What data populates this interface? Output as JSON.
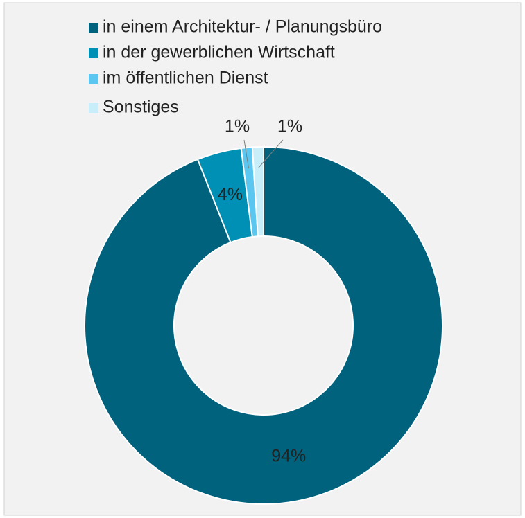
{
  "chart_data": {
    "type": "donut",
    "categories": [
      "in einem Architektur- / Planungsbüro",
      "in der gewerblichen Wirtschaft",
      "im öffentlichen Dienst",
      "Sonstiges"
    ],
    "values": [
      94,
      4,
      1,
      1
    ],
    "value_labels": [
      "94%",
      "4%",
      "1%",
      "1%"
    ],
    "colors": [
      "#00627d",
      "#0090b5",
      "#5bc6f0",
      "#c8eefa"
    ]
  }
}
